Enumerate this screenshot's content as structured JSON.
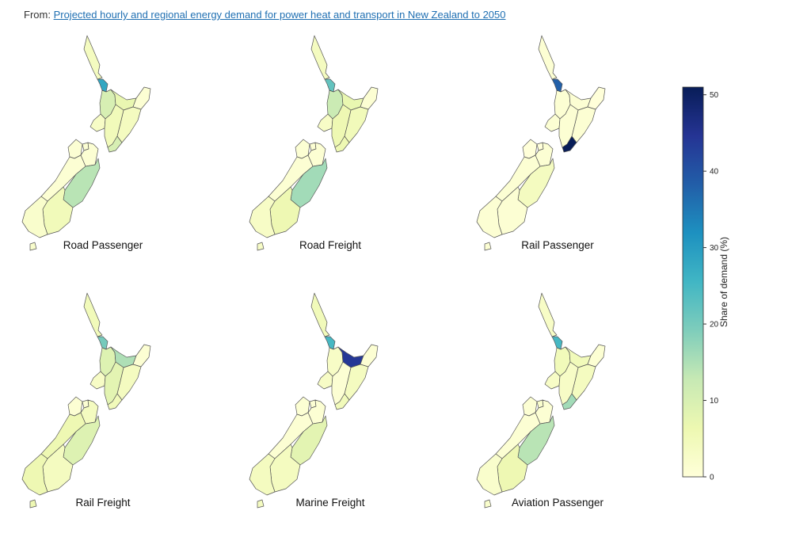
{
  "header": {
    "prefix": "From:",
    "link_text": "Projected hourly and regional energy demand for power heat and transport in New Zealand to 2050"
  },
  "chart_data": {
    "type": "choropleth",
    "colormap": "YlGnBu",
    "colorbar": {
      "label": "Share of demand (%)",
      "min": 0,
      "max": 51,
      "ticks": [
        0,
        10,
        20,
        30,
        40,
        50
      ]
    },
    "regions": [
      "Northland",
      "Auckland",
      "Waikato",
      "Bay of Plenty",
      "Gisborne",
      "Hawke's Bay",
      "Taranaki",
      "Manawatu-Wanganui",
      "Wellington",
      "Tasman",
      "Nelson",
      "Marlborough",
      "West Coast",
      "Canterbury",
      "Otago",
      "Southland"
    ],
    "panels": [
      {
        "title": "Road Passenger",
        "values": [
          4,
          28,
          10,
          7,
          1,
          4,
          3,
          5,
          10,
          1,
          1,
          1,
          1,
          14,
          5,
          2
        ]
      },
      {
        "title": "Road Freight",
        "values": [
          4,
          22,
          12,
          7,
          1,
          5,
          3,
          6,
          6,
          1,
          1,
          1,
          1,
          16,
          6,
          3
        ]
      },
      {
        "title": "Rail Passenger",
        "values": [
          1,
          38,
          1,
          1,
          0,
          1,
          1,
          1,
          51,
          0,
          0,
          1,
          1,
          4,
          1,
          1
        ]
      },
      {
        "title": "Rail Freight",
        "values": [
          5,
          20,
          9,
          15,
          1,
          4,
          3,
          8,
          5,
          1,
          1,
          4,
          6,
          9,
          4,
          6
        ]
      },
      {
        "title": "Marine Freight",
        "values": [
          5,
          25,
          3,
          44,
          1,
          4,
          3,
          1,
          5,
          1,
          1,
          1,
          1,
          8,
          4,
          4
        ]
      },
      {
        "title": "Aviation Passenger",
        "values": [
          3,
          25,
          5,
          5,
          1,
          4,
          3,
          3,
          16,
          1,
          2,
          1,
          1,
          14,
          6,
          2
        ]
      }
    ]
  }
}
